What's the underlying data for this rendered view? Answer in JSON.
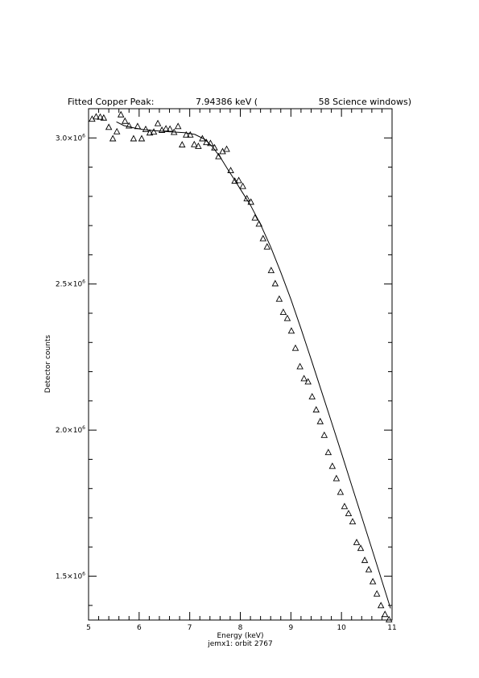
{
  "chart_data": {
    "type": "scatter",
    "title": {
      "label": "Fitted Copper Peak:",
      "value": "7.94386 keV (",
      "windows": "58 Science windows)"
    },
    "xlabel": "Energy (keV)",
    "subtitle": "jemx1: orbit 2767",
    "ylabel": "Detector counts",
    "xlim": [
      5,
      11
    ],
    "ylim": [
      1350000,
      3100000
    ],
    "xticks": [
      5,
      6,
      7,
      8,
      9,
      10,
      11
    ],
    "xtick_labels": [
      "5",
      "6",
      "7",
      "8",
      "9",
      "10",
      "11"
    ],
    "yticks": [
      1500000,
      2000000,
      2500000,
      3000000
    ],
    "ytick_labels": [
      {
        "mantissa": "1.5",
        "times": "×10",
        "exp": "6"
      },
      {
        "mantissa": "2.0",
        "times": "×10",
        "exp": "6"
      },
      {
        "mantissa": "2.5",
        "times": "×10",
        "exp": "6"
      },
      {
        "mantissa": "3.0",
        "times": "×10",
        "exp": "6"
      }
    ],
    "x_minor_step": 0.2,
    "y_minor_step": 100000,
    "grid": false,
    "legend": "none",
    "series": [
      {
        "kind": "points",
        "marker": "open-triangle",
        "x": [
          5.07,
          5.15,
          5.23,
          5.3,
          5.4,
          5.48,
          5.56,
          5.64,
          5.72,
          5.8,
          5.89,
          5.97,
          6.05,
          6.13,
          6.21,
          6.29,
          6.37,
          6.45,
          6.53,
          6.61,
          6.69,
          6.77,
          6.85,
          6.93,
          7.01,
          7.09,
          7.17,
          7.25,
          7.33,
          7.41,
          7.49,
          7.57,
          7.65,
          7.73,
          7.81,
          7.89,
          7.97,
          8.05,
          8.13,
          8.21,
          8.29,
          8.37,
          8.45,
          8.53,
          8.61,
          8.69,
          8.77,
          8.85,
          8.93,
          9.01,
          9.09,
          9.18,
          9.26,
          9.34,
          9.42,
          9.5,
          9.58,
          9.66,
          9.74,
          9.82,
          9.9,
          9.98,
          10.06,
          10.14,
          10.22,
          10.3,
          10.38,
          10.46,
          10.54,
          10.62,
          10.7,
          10.78,
          10.86,
          10.94
        ],
        "y": [
          3065000,
          3073000,
          3072000,
          3069000,
          3037000,
          2998000,
          3022000,
          3080000,
          3058000,
          3042000,
          2998000,
          3040000,
          2998000,
          3030000,
          3018000,
          3021000,
          3050000,
          3027000,
          3032000,
          3031000,
          3020000,
          3040000,
          2977000,
          3011000,
          3011000,
          2978000,
          2972000,
          2998000,
          2985000,
          2982000,
          2967000,
          2937000,
          2954000,
          2962000,
          2889000,
          2853000,
          2855000,
          2835000,
          2793000,
          2781000,
          2727000,
          2706000,
          2656000,
          2628000,
          2547000,
          2502000,
          2449000,
          2404000,
          2383000,
          2340000,
          2281000,
          2218000,
          2177000,
          2166000,
          2115000,
          2070000,
          2030000,
          1983000,
          1924000,
          1877000,
          1835000,
          1788000,
          1739000,
          1715000,
          1687000,
          1616000,
          1596000,
          1555000,
          1523000,
          1482000,
          1440000,
          1400000,
          1370000,
          1352000
        ]
      },
      {
        "kind": "line",
        "marker": "none",
        "x": [
          5.55,
          5.7,
          5.9,
          6.1,
          6.3,
          6.5,
          6.7,
          6.9,
          7.1,
          7.3,
          7.45,
          7.6,
          7.75,
          7.9,
          8.0,
          8.2,
          8.4,
          8.6,
          8.8,
          9.0,
          9.2,
          9.4,
          9.6,
          9.8,
          10.0,
          10.2,
          10.4,
          10.6,
          10.8,
          10.97
        ],
        "y": [
          3055000,
          3042000,
          3034000,
          3028000,
          3025000,
          3022000,
          3020000,
          3018000,
          3012000,
          2995000,
          2970000,
          2935000,
          2893000,
          2853000,
          2825000,
          2770000,
          2704000,
          2627000,
          2540000,
          2448000,
          2347000,
          2242000,
          2136000,
          2029000,
          1921000,
          1812000,
          1703000,
          1594000,
          1484000,
          1390000
        ]
      }
    ]
  }
}
